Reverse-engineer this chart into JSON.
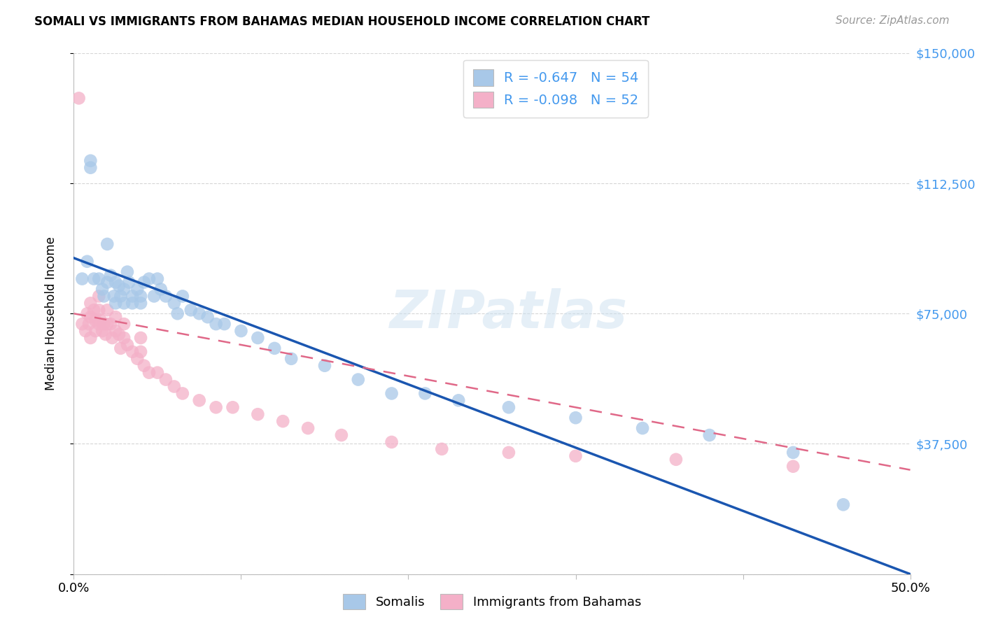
{
  "title": "SOMALI VS IMMIGRANTS FROM BAHAMAS MEDIAN HOUSEHOLD INCOME CORRELATION CHART",
  "source": "Source: ZipAtlas.com",
  "ylabel": "Median Household Income",
  "xlim": [
    0,
    0.5
  ],
  "ylim": [
    0,
    150000
  ],
  "yticks": [
    0,
    37500,
    75000,
    112500,
    150000
  ],
  "ytick_labels": [
    "",
    "$37,500",
    "$75,000",
    "$112,500",
    "$150,000"
  ],
  "xticks": [
    0.0,
    0.1,
    0.2,
    0.3,
    0.4,
    0.5
  ],
  "xtick_labels": [
    "0.0%",
    "",
    "",
    "",
    "",
    "50.0%"
  ],
  "legend1_r": "-0.647",
  "legend1_n": "54",
  "legend2_r": "-0.098",
  "legend2_n": "52",
  "blue_scatter_color": "#a8c8e8",
  "blue_line_color": "#1a56b0",
  "pink_scatter_color": "#f4b0c8",
  "pink_line_color": "#e06888",
  "label_color": "#4499ee",
  "watermark_color": "#cce0f0",
  "blue_line_y0": 91000,
  "blue_line_y1": 0,
  "pink_line_y0": 75000,
  "pink_line_y1": 30000,
  "somali_x": [
    0.005,
    0.008,
    0.01,
    0.01,
    0.012,
    0.015,
    0.017,
    0.018,
    0.02,
    0.02,
    0.022,
    0.024,
    0.025,
    0.025,
    0.027,
    0.028,
    0.03,
    0.03,
    0.032,
    0.033,
    0.035,
    0.035,
    0.038,
    0.04,
    0.04,
    0.042,
    0.045,
    0.048,
    0.05,
    0.052,
    0.055,
    0.06,
    0.062,
    0.065,
    0.07,
    0.075,
    0.08,
    0.085,
    0.09,
    0.1,
    0.11,
    0.12,
    0.13,
    0.15,
    0.17,
    0.19,
    0.21,
    0.23,
    0.26,
    0.3,
    0.34,
    0.38,
    0.43,
    0.46
  ],
  "somali_y": [
    85000,
    90000,
    117000,
    119000,
    85000,
    85000,
    82000,
    80000,
    95000,
    84000,
    86000,
    80000,
    78000,
    84000,
    83000,
    80000,
    82000,
    78000,
    87000,
    84000,
    80000,
    78000,
    82000,
    80000,
    78000,
    84000,
    85000,
    80000,
    85000,
    82000,
    80000,
    78000,
    75000,
    80000,
    76000,
    75000,
    74000,
    72000,
    72000,
    70000,
    68000,
    65000,
    62000,
    60000,
    56000,
    52000,
    52000,
    50000,
    48000,
    45000,
    42000,
    40000,
    35000,
    20000
  ],
  "bahamas_x": [
    0.003,
    0.005,
    0.007,
    0.008,
    0.009,
    0.01,
    0.01,
    0.01,
    0.012,
    0.013,
    0.013,
    0.015,
    0.015,
    0.015,
    0.016,
    0.017,
    0.018,
    0.019,
    0.02,
    0.02,
    0.022,
    0.023,
    0.025,
    0.025,
    0.027,
    0.028,
    0.03,
    0.03,
    0.032,
    0.035,
    0.038,
    0.04,
    0.04,
    0.042,
    0.045,
    0.05,
    0.055,
    0.06,
    0.065,
    0.075,
    0.085,
    0.095,
    0.11,
    0.125,
    0.14,
    0.16,
    0.19,
    0.22,
    0.26,
    0.3,
    0.36,
    0.43
  ],
  "bahamas_y": [
    137000,
    72000,
    70000,
    75000,
    72000,
    78000,
    74000,
    68000,
    76000,
    73000,
    70000,
    80000,
    76000,
    72000,
    73000,
    70000,
    72000,
    69000,
    76000,
    72000,
    72000,
    68000,
    74000,
    70000,
    69000,
    65000,
    72000,
    68000,
    66000,
    64000,
    62000,
    68000,
    64000,
    60000,
    58000,
    58000,
    56000,
    54000,
    52000,
    50000,
    48000,
    48000,
    46000,
    44000,
    42000,
    40000,
    38000,
    36000,
    35000,
    34000,
    33000,
    31000
  ]
}
